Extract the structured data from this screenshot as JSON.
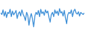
{
  "chart_data": {
    "type": "line",
    "color": "#3c8ed6",
    "tick_labels": false,
    "grid": false,
    "x": [
      0,
      1,
      2,
      3,
      4,
      5,
      6,
      7,
      8,
      9,
      10,
      11,
      12,
      13,
      14,
      15,
      16,
      17,
      18,
      19,
      20,
      21,
      22,
      23,
      24,
      25,
      26,
      27,
      28,
      29,
      30,
      31,
      32,
      33,
      34,
      35,
      36,
      37,
      38,
      39,
      40,
      41,
      42,
      43,
      44,
      45,
      46,
      47,
      48,
      49,
      50,
      51,
      52,
      53,
      54,
      55,
      56,
      57,
      58,
      59,
      60,
      61,
      62,
      63,
      64,
      65,
      66,
      67,
      68,
      69,
      70,
      71
    ],
    "values": [
      60,
      55,
      70,
      50,
      65,
      45,
      62,
      58,
      72,
      48,
      66,
      54,
      60,
      68,
      42,
      58,
      64,
      50,
      70,
      56,
      48,
      35,
      62,
      52,
      20,
      45,
      58,
      40,
      15,
      50,
      62,
      55,
      68,
      48,
      72,
      58,
      64,
      52,
      70,
      60,
      66,
      45,
      30,
      55,
      62,
      48,
      70,
      58,
      66,
      52,
      74,
      60,
      64,
      50,
      68,
      44,
      25,
      54,
      62,
      58,
      70,
      48,
      66,
      72,
      60,
      56,
      64,
      50,
      62,
      58,
      55,
      60
    ],
    "xlim": [
      0,
      71
    ],
    "ylim": [
      0,
      100
    ]
  }
}
